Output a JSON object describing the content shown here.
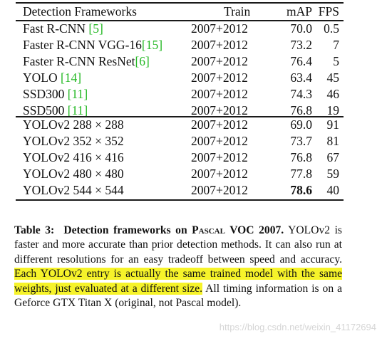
{
  "table": {
    "headers": [
      "Detection Frameworks",
      "Train",
      "mAP",
      "FPS"
    ],
    "rows": [
      {
        "name": "Fast R-CNN ",
        "ref": "[5]",
        "train": "2007+2012",
        "map": "70.0",
        "fps": "0.5"
      },
      {
        "name": "Faster R-CNN VGG-16",
        "ref": "[15]",
        "train": "2007+2012",
        "map": "73.2",
        "fps": "7"
      },
      {
        "name": "Faster R-CNN ResNet",
        "ref": "[6]",
        "train": "2007+2012",
        "map": "76.4",
        "fps": "5"
      },
      {
        "name": "YOLO ",
        "ref": "[14]",
        "train": "2007+2012",
        "map": "63.4",
        "fps": "45"
      },
      {
        "name": "SSD300 ",
        "ref": "[11]",
        "train": "2007+2012",
        "map": "74.3",
        "fps": "46"
      },
      {
        "name": "SSD500 ",
        "ref": "[11]",
        "train": "2007+2012",
        "map": "76.8",
        "fps": "19"
      },
      {
        "name": "YOLOv2 288 × 288",
        "ref": "",
        "train": "2007+2012",
        "map": "69.0",
        "fps": "91"
      },
      {
        "name": "YOLOv2 352 × 352",
        "ref": "",
        "train": "2007+2012",
        "map": "73.7",
        "fps": "81"
      },
      {
        "name": "YOLOv2 416 × 416",
        "ref": "",
        "train": "2007+2012",
        "map": "76.8",
        "fps": "67"
      },
      {
        "name": "YOLOv2 480 × 480",
        "ref": "",
        "train": "2007+2012",
        "map": "77.8",
        "fps": "59"
      },
      {
        "name": "YOLOv2 544 × 544",
        "ref": "",
        "train": "2007+2012",
        "map": "78.6",
        "fps": "40"
      }
    ]
  },
  "caption": {
    "label": "Table 3:",
    "title_pre": "Detection frameworks on ",
    "title_sc": "Pascal",
    "title_post": " VOC 2007.",
    "body_plain": " YOLOv2 is faster and more accurate than prior detection methods. It can also run at different resolutions for an easy tradeoff between speed and accuracy. ",
    "body_highlight": "Each YOLOv2 entry is actually the same trained model with the same weights, just evaluated at a different size.",
    "body_tail": " All timing information is on a Geforce GTX Titan X (original, not Pascal model)."
  },
  "watermark": "https://blog.csdn.net/weixin_41172694",
  "colors": {
    "reference_link": "#22b822",
    "highlight": "#f6f32a",
    "watermark": "#d5d5d5"
  }
}
